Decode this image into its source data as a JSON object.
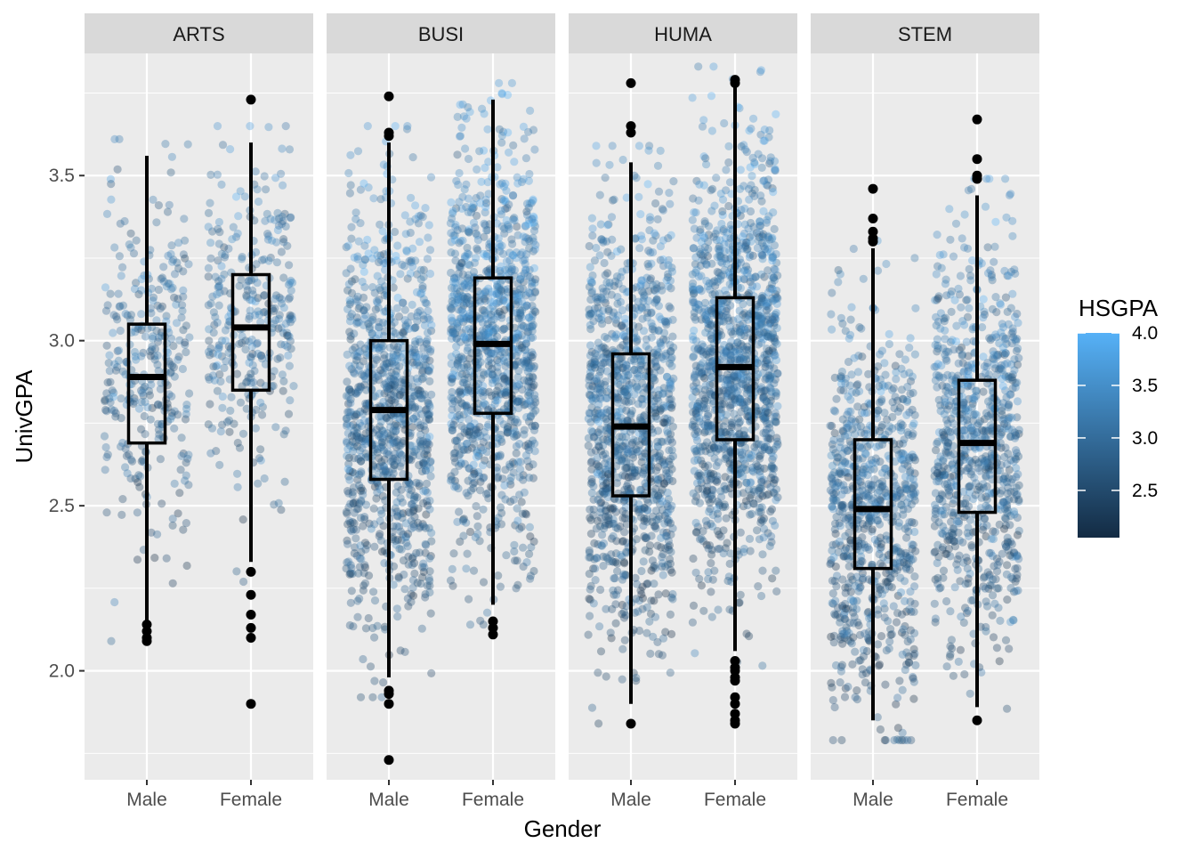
{
  "chart_data": {
    "type": "boxplot",
    "xlabel": "Gender",
    "ylabel": "UnivGPA",
    "ylim": [
      1.67,
      3.87
    ],
    "y_ticks": [
      2.0,
      2.5,
      3.0,
      3.5
    ],
    "y_tick_labels": [
      "2.0",
      "2.5",
      "3.0",
      "3.5"
    ],
    "categories": [
      "Male",
      "Female"
    ],
    "grid": true,
    "legend": {
      "title": "HSGPA",
      "position": "right",
      "type": "colorbar",
      "range": [
        2.05,
        4.0
      ],
      "ticks": [
        2.5,
        3.0,
        3.5,
        4.0
      ],
      "tick_labels": [
        "2.5",
        "3.0",
        "3.5",
        "4.0"
      ],
      "low_color": "#132B43",
      "high_color": "#56B1F7"
    },
    "panel_strip_color": "#D9D9D9",
    "panel_background": "#EBEBEB",
    "facets": [
      {
        "name": "ARTS",
        "groups": [
          {
            "gender": "Male",
            "q1": 2.69,
            "median": 2.89,
            "q3": 3.05,
            "whisker_low": 2.15,
            "whisker_high": 3.56,
            "outliers": [
              2.14,
              2.12,
              2.1,
              2.09
            ],
            "points_n": 330,
            "hs_center": 2.95
          },
          {
            "gender": "Female",
            "q1": 2.85,
            "median": 3.04,
            "q3": 3.2,
            "whisker_low": 2.33,
            "whisker_high": 3.6,
            "outliers": [
              3.73,
              2.3,
              2.23,
              2.17,
              2.13,
              2.1,
              1.9
            ],
            "points_n": 330,
            "hs_center": 3.05
          }
        ]
      },
      {
        "name": "BUSI",
        "groups": [
          {
            "gender": "Male",
            "q1": 2.58,
            "median": 2.79,
            "q3": 3.0,
            "whisker_low": 1.98,
            "whisker_high": 3.6,
            "outliers": [
              3.74,
              3.63,
              3.62,
              1.94,
              1.93,
              1.9,
              1.73
            ],
            "points_n": 1000,
            "hs_center": 3.0
          },
          {
            "gender": "Female",
            "q1": 2.78,
            "median": 2.99,
            "q3": 3.19,
            "whisker_low": 2.2,
            "whisker_high": 3.73,
            "outliers": [
              2.15,
              2.13,
              2.11
            ],
            "points_n": 1100,
            "hs_center": 3.15
          }
        ]
      },
      {
        "name": "HUMA",
        "groups": [
          {
            "gender": "Male",
            "q1": 2.53,
            "median": 2.74,
            "q3": 2.96,
            "whisker_low": 1.9,
            "whisker_high": 3.54,
            "outliers": [
              3.78,
              3.65,
              3.63,
              1.84
            ],
            "points_n": 1100,
            "hs_center": 2.95
          },
          {
            "gender": "Female",
            "q1": 2.7,
            "median": 2.92,
            "q3": 3.13,
            "whisker_low": 2.06,
            "whisker_high": 3.78,
            "outliers": [
              3.79,
              3.78,
              2.03,
              2.01,
              2.0,
              1.98,
              1.97,
              1.92,
              1.9,
              1.87,
              1.85,
              1.84
            ],
            "points_n": 1300,
            "hs_center": 3.05
          }
        ]
      },
      {
        "name": "STEM",
        "groups": [
          {
            "gender": "Male",
            "q1": 2.31,
            "median": 2.49,
            "q3": 2.7,
            "whisker_low": 1.85,
            "whisker_high": 3.28,
            "outliers": [
              3.46,
              3.37,
              3.33,
              3.31,
              3.3
            ],
            "points_n": 800,
            "hs_center": 2.95
          },
          {
            "gender": "Female",
            "q1": 2.48,
            "median": 2.69,
            "q3": 2.88,
            "whisker_low": 1.89,
            "whisker_high": 3.44,
            "outliers": [
              3.67,
              3.55,
              3.5,
              3.49,
              1.85
            ],
            "points_n": 850,
            "hs_center": 3.0
          }
        ]
      }
    ]
  }
}
